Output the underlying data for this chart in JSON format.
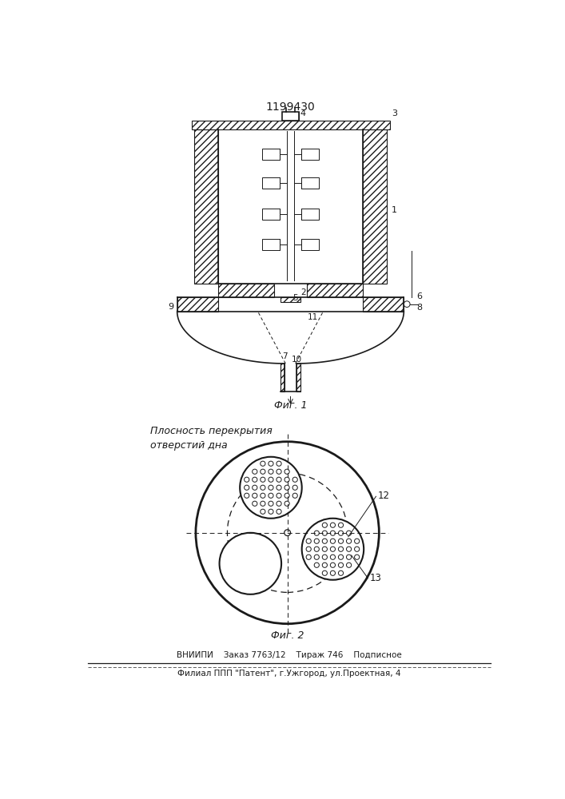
{
  "title": "1199430",
  "fig1_label": "Фиг. 1",
  "fig2_label": "Фиг. 2",
  "fig2_annotation": "Плосность перекрытия\nотверстий дна",
  "label_12": "12",
  "label_13": "13",
  "bottom_text1": "ВНИИПИ    Заказ 7763/12    Тираж 746    Подписное",
  "bottom_text2": "Филиал ППП \"Патент\", г.Ужгород, ул.Проектная, 4",
  "bg_color": "#ffffff",
  "line_color": "#1a1a1a"
}
